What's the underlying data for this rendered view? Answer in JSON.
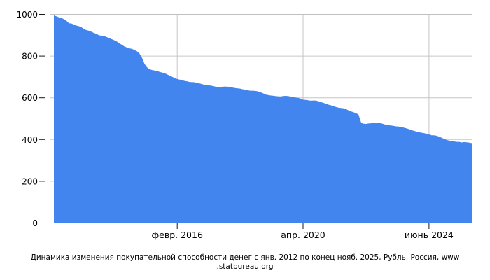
{
  "chart_data": {
    "type": "area",
    "title": "",
    "xlabel": "",
    "ylabel": "",
    "ylim": [
      0,
      1000
    ],
    "grid": true,
    "fill_color": "#4285EE",
    "x_unit": "month",
    "x_range": {
      "start": "янв. 2012",
      "end": "нояб. 2025"
    },
    "y_ticks": [
      0,
      200,
      400,
      600,
      800,
      1000
    ],
    "x_ticks": [
      {
        "label": "февр. 2016",
        "month_index": 49
      },
      {
        "label": "апр. 2020",
        "month_index": 99
      },
      {
        "label": "июнь 2024",
        "month_index": 149
      }
    ],
    "series_name": "Покупательная способность денег, Рубль",
    "values": [
      995,
      991,
      986,
      983,
      977,
      969,
      957,
      956,
      951,
      946,
      943,
      938,
      929,
      924,
      921,
      916,
      910,
      906,
      899,
      898,
      896,
      891,
      886,
      881,
      876,
      870,
      861,
      854,
      846,
      841,
      837,
      835,
      829,
      823,
      812,
      792,
      762,
      746,
      737,
      733,
      731,
      729,
      724,
      721,
      717,
      712,
      706,
      701,
      694,
      690,
      687,
      684,
      681,
      679,
      675,
      675,
      674,
      671,
      668,
      665,
      661,
      660,
      659,
      657,
      654,
      650,
      650,
      653,
      654,
      653,
      652,
      649,
      647,
      645,
      644,
      641,
      639,
      636,
      634,
      634,
      633,
      631,
      627,
      622,
      616,
      613,
      611,
      610,
      608,
      607,
      606,
      608,
      609,
      608,
      606,
      604,
      601,
      600,
      596,
      591,
      590,
      588,
      586,
      587,
      587,
      584,
      580,
      576,
      572,
      567,
      564,
      560,
      556,
      553,
      551,
      550,
      546,
      540,
      535,
      531,
      526,
      520,
      483,
      476,
      475,
      477,
      478,
      481,
      481,
      480,
      478,
      474,
      470,
      468,
      467,
      465,
      463,
      462,
      459,
      457,
      454,
      450,
      445,
      442,
      438,
      435,
      433,
      431,
      428,
      425,
      420,
      420,
      418,
      414,
      409,
      403,
      398,
      395,
      393,
      391,
      389,
      389,
      386,
      388,
      387,
      385,
      383
    ]
  },
  "caption": {
    "line1": "Динамика изменения покупательной способности денег с янв. 2012 по конец нояб. 2025, Рубль, Россия, www",
    "line2": ".statbureau.org"
  }
}
